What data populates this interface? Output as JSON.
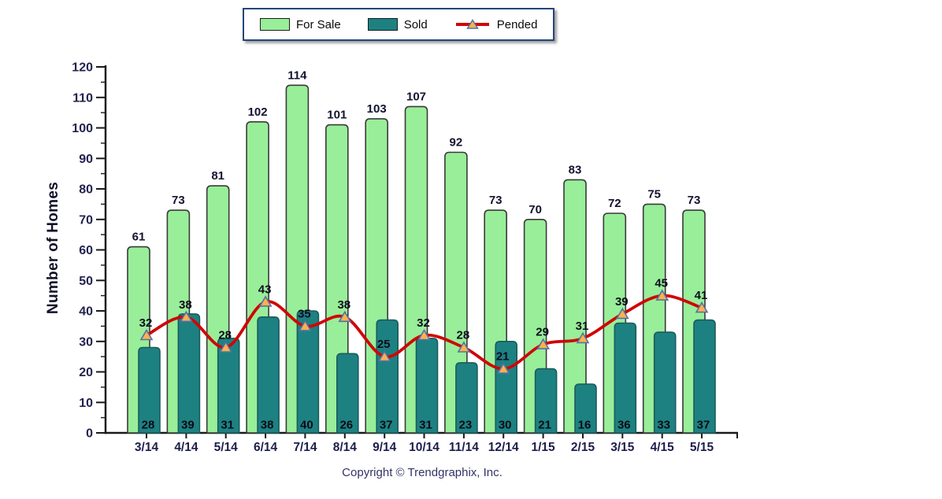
{
  "chart_data": {
    "type": "bar",
    "note": "grouped overlapping bars with smoothed line overlay",
    "categories": [
      "3/14",
      "4/14",
      "5/14",
      "6/14",
      "7/14",
      "8/14",
      "9/14",
      "10/14",
      "11/14",
      "12/14",
      "1/15",
      "2/15",
      "3/15",
      "4/15",
      "5/15"
    ],
    "series": [
      {
        "name": "For Sale",
        "type": "bar",
        "color": "#99ee99",
        "stroke": "#3a3a3a",
        "values": [
          61,
          73,
          81,
          102,
          114,
          101,
          103,
          107,
          92,
          73,
          70,
          83,
          72,
          75,
          73
        ]
      },
      {
        "name": "Sold",
        "type": "bar",
        "color": "#1d8181",
        "stroke": "#1a5c5c",
        "values": [
          28,
          39,
          31,
          38,
          40,
          26,
          37,
          31,
          23,
          30,
          21,
          16,
          36,
          33,
          37
        ]
      },
      {
        "name": "Pended",
        "type": "line",
        "color": "#cf0606",
        "marker": {
          "shape": "triangle",
          "fill": "#ffb04e",
          "stroke": "#4f74a8"
        },
        "values": [
          32,
          38,
          28,
          43,
          35,
          38,
          25,
          32,
          28,
          21,
          29,
          31,
          39,
          45,
          41
        ]
      }
    ],
    "ylabel": "Number of Homes",
    "xlabel": "",
    "ylim": [
      0,
      120
    ],
    "ytick_step": 10,
    "ytick_minor_step": 5,
    "grid": false,
    "legend_position": "top",
    "axis_color": "#1a1a1a"
  },
  "footer": {
    "copyright": "Copyright © Trendgraphix, Inc."
  }
}
